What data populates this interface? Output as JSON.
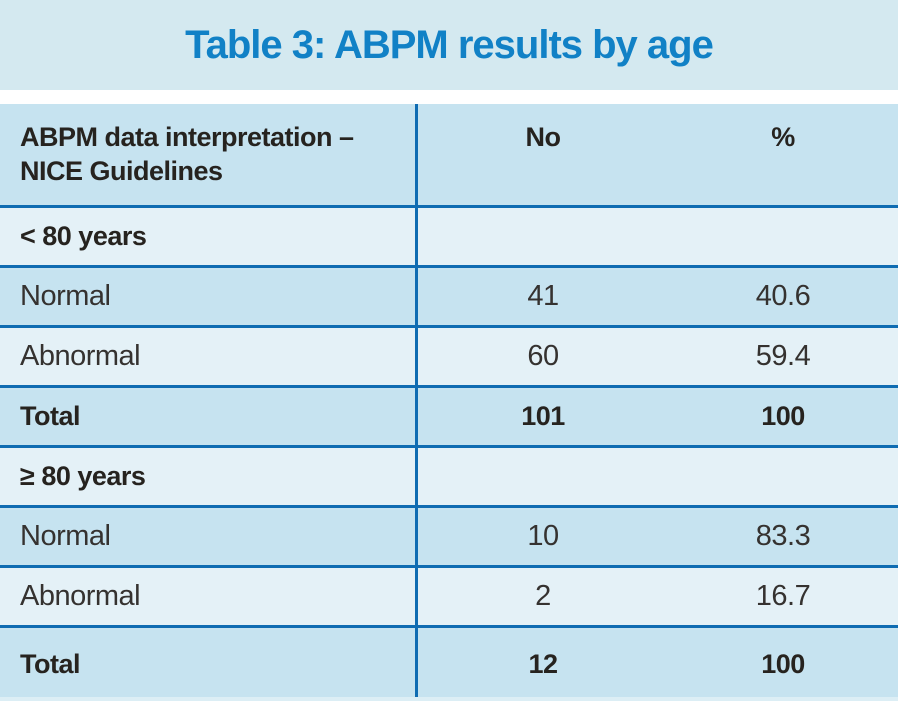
{
  "title": "Table 3: ABPM results by age",
  "header": {
    "col1_line1": "ABPM data interpretation –",
    "col1_line2": "NICE Guidelines",
    "col2": "No",
    "col3": "%"
  },
  "rows": [
    {
      "type": "section",
      "label": "< 80 years",
      "no": "",
      "pct": ""
    },
    {
      "type": "data",
      "label": "Normal",
      "no": "41",
      "pct": "40.6"
    },
    {
      "type": "data",
      "label": "Abnormal",
      "no": "60",
      "pct": "59.4"
    },
    {
      "type": "total",
      "label": "Total",
      "no": "101",
      "pct": "100"
    },
    {
      "type": "section",
      "label": "≥ 80 years",
      "no": "",
      "pct": ""
    },
    {
      "type": "data",
      "label": "Normal",
      "no": "10",
      "pct": "83.3"
    },
    {
      "type": "data",
      "label": "Abnormal",
      "no": "2",
      "pct": "16.7"
    },
    {
      "type": "total",
      "label": "Total",
      "no": "12",
      "pct": "100"
    }
  ],
  "colors": {
    "title_blue": "#1181c6",
    "rule_blue": "#0f6cb2",
    "row_dark": "#c6e3f0",
    "row_light": "#e4f1f7",
    "band_bg": "#d4e9f0",
    "text_dark": "#26231f"
  }
}
